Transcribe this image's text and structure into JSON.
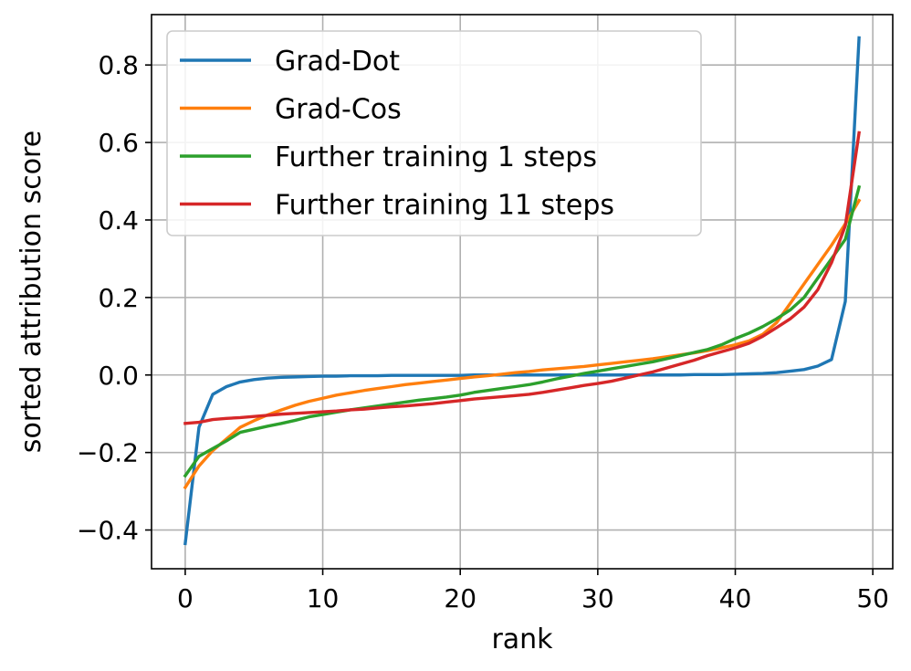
{
  "chart_data": {
    "type": "line",
    "title": "",
    "xlabel": "rank",
    "ylabel": "sorted attribution score",
    "xlim": [
      -2.45,
      51.45
    ],
    "ylim": [
      -0.5,
      0.93
    ],
    "xticks": [
      0,
      10,
      20,
      30,
      40,
      50
    ],
    "xtick_labels": [
      "0",
      "10",
      "20",
      "30",
      "40",
      "50"
    ],
    "yticks": [
      -0.4,
      -0.2,
      0.0,
      0.2,
      0.4,
      0.6,
      0.8
    ],
    "ytick_labels": [
      "−0.4",
      "−0.2",
      "0.0",
      "0.2",
      "0.4",
      "0.6",
      "0.8"
    ],
    "grid": true,
    "legend_position": "top-left",
    "x": [
      0,
      1,
      2,
      3,
      4,
      5,
      6,
      7,
      8,
      9,
      10,
      11,
      12,
      13,
      14,
      15,
      16,
      17,
      18,
      19,
      20,
      21,
      22,
      23,
      24,
      25,
      26,
      27,
      28,
      29,
      30,
      31,
      32,
      33,
      34,
      35,
      36,
      37,
      38,
      39,
      40,
      41,
      42,
      43,
      44,
      45,
      46,
      47,
      48,
      49
    ],
    "series": [
      {
        "name": "Grad-Dot",
        "color": "#1f77b4",
        "values": [
          -0.435,
          -0.135,
          -0.05,
          -0.03,
          -0.018,
          -0.012,
          -0.008,
          -0.006,
          -0.005,
          -0.004,
          -0.003,
          -0.003,
          -0.002,
          -0.002,
          -0.002,
          -0.001,
          -0.001,
          -0.001,
          -0.001,
          -0.001,
          -0.001,
          0.0,
          0.0,
          0.0,
          0.0,
          0.0,
          0.0,
          0.0,
          0.0,
          0.0,
          0.0,
          0.0,
          0.0,
          0.0,
          0.0,
          0.0,
          0.0,
          0.001,
          0.001,
          0.001,
          0.002,
          0.003,
          0.004,
          0.006,
          0.01,
          0.014,
          0.023,
          0.04,
          0.19,
          0.87
        ]
      },
      {
        "name": "Grad-Cos",
        "color": "#ff7f0e",
        "values": [
          -0.29,
          -0.235,
          -0.195,
          -0.165,
          -0.135,
          -0.118,
          -0.103,
          -0.09,
          -0.078,
          -0.068,
          -0.06,
          -0.052,
          -0.046,
          -0.04,
          -0.035,
          -0.03,
          -0.025,
          -0.021,
          -0.017,
          -0.013,
          -0.009,
          -0.005,
          -0.002,
          0.002,
          0.006,
          0.009,
          0.013,
          0.016,
          0.019,
          0.022,
          0.026,
          0.03,
          0.034,
          0.038,
          0.042,
          0.047,
          0.052,
          0.057,
          0.063,
          0.07,
          0.078,
          0.088,
          0.105,
          0.135,
          0.185,
          0.235,
          0.285,
          0.335,
          0.39,
          0.45
        ]
      },
      {
        "name": "Further training 1 steps",
        "color": "#2ca02c",
        "values": [
          -0.26,
          -0.21,
          -0.19,
          -0.17,
          -0.148,
          -0.14,
          -0.132,
          -0.125,
          -0.117,
          -0.108,
          -0.102,
          -0.096,
          -0.09,
          -0.085,
          -0.08,
          -0.075,
          -0.07,
          -0.065,
          -0.061,
          -0.057,
          -0.052,
          -0.045,
          -0.04,
          -0.035,
          -0.03,
          -0.025,
          -0.018,
          -0.01,
          -0.003,
          0.004,
          0.01,
          0.016,
          0.022,
          0.028,
          0.034,
          0.042,
          0.05,
          0.058,
          0.066,
          0.078,
          0.094,
          0.108,
          0.125,
          0.145,
          0.168,
          0.2,
          0.25,
          0.3,
          0.35,
          0.485
        ]
      },
      {
        "name": "Further training 11 steps",
        "color": "#d62728",
        "values": [
          -0.125,
          -0.122,
          -0.115,
          -0.112,
          -0.11,
          -0.107,
          -0.104,
          -0.101,
          -0.099,
          -0.097,
          -0.095,
          -0.093,
          -0.09,
          -0.088,
          -0.085,
          -0.082,
          -0.08,
          -0.077,
          -0.074,
          -0.07,
          -0.066,
          -0.062,
          -0.059,
          -0.056,
          -0.053,
          -0.05,
          -0.045,
          -0.039,
          -0.033,
          -0.027,
          -0.022,
          -0.016,
          -0.008,
          0.0,
          0.008,
          0.018,
          0.028,
          0.038,
          0.05,
          0.06,
          0.07,
          0.082,
          0.1,
          0.122,
          0.145,
          0.175,
          0.22,
          0.29,
          0.385,
          0.625
        ]
      }
    ]
  }
}
